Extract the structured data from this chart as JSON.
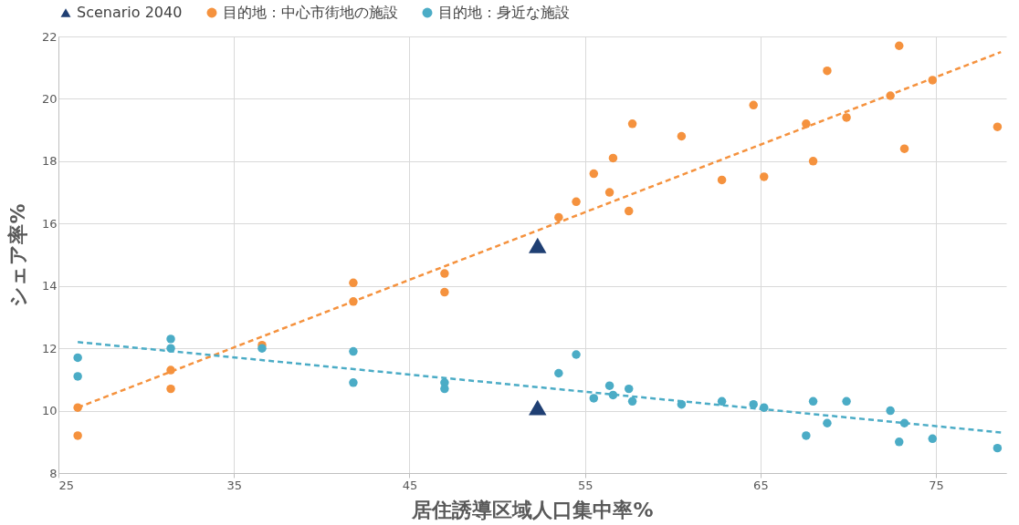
{
  "chart_data": {
    "type": "scatter",
    "xlabel": "居住誘導区域人口集中率%",
    "ylabel": "シェア率%",
    "xlim": [
      25,
      79
    ],
    "xticks": [
      25,
      35,
      45,
      55,
      65,
      75
    ],
    "ylim": [
      8,
      22
    ],
    "yticks": [
      8,
      10,
      12,
      14,
      16,
      18,
      20,
      22
    ],
    "grid": true,
    "legend": "top",
    "series": [
      {
        "name": "Scenario 2040",
        "marker": "triangle",
        "color": "#1f3f73",
        "x": [
          52.3,
          52.3
        ],
        "values": [
          15.3,
          10.1
        ]
      },
      {
        "name": "目的地：中心市街地の施設",
        "marker": "circle",
        "color": "#f5923e",
        "x": [
          26.1,
          26.1,
          31.4,
          31.4,
          36.6,
          41.8,
          41.8,
          47.0,
          47.0,
          53.5,
          54.5,
          55.5,
          56.4,
          56.6,
          57.5,
          57.7,
          60.5,
          62.8,
          64.6,
          65.2,
          67.6,
          68.0,
          68.8,
          69.9,
          72.4,
          72.9,
          73.2,
          74.8,
          78.5
        ],
        "values": [
          10.1,
          9.2,
          11.3,
          10.7,
          12.1,
          14.1,
          13.5,
          14.4,
          13.8,
          16.2,
          16.7,
          17.6,
          17.0,
          18.1,
          16.4,
          19.2,
          18.8,
          17.4,
          19.8,
          17.5,
          19.2,
          18.0,
          20.9,
          19.4,
          20.1,
          21.7,
          18.4,
          20.6,
          19.1
        ]
      },
      {
        "name": "目的地：身近な施設",
        "marker": "circle",
        "color": "#4bacc6",
        "x": [
          26.1,
          26.1,
          31.4,
          31.4,
          36.6,
          41.8,
          41.8,
          47.0,
          47.0,
          53.5,
          54.5,
          55.5,
          56.4,
          56.6,
          57.5,
          57.7,
          60.5,
          62.8,
          64.6,
          65.2,
          67.6,
          68.0,
          68.8,
          69.9,
          72.4,
          72.9,
          73.2,
          74.8,
          78.5
        ],
        "values": [
          11.7,
          11.1,
          12.3,
          12.0,
          12.0,
          11.9,
          10.9,
          10.9,
          10.7,
          11.2,
          11.8,
          10.4,
          10.8,
          10.5,
          10.7,
          10.3,
          10.2,
          10.3,
          10.2,
          10.1,
          9.2,
          10.3,
          9.6,
          10.3,
          10.0,
          9.0,
          9.6,
          9.1,
          8.8
        ]
      },
      {
        "type": "line",
        "line_style": "dashed",
        "marker": "none",
        "color": "#f5923e",
        "x": [
          26.1,
          78.7
        ],
        "values": [
          10.1,
          21.5
        ]
      },
      {
        "type": "line",
        "line_style": "dashed",
        "marker": "none",
        "color": "#4bacc6",
        "x": [
          26.1,
          78.7
        ],
        "values": [
          12.2,
          9.3
        ]
      }
    ]
  }
}
